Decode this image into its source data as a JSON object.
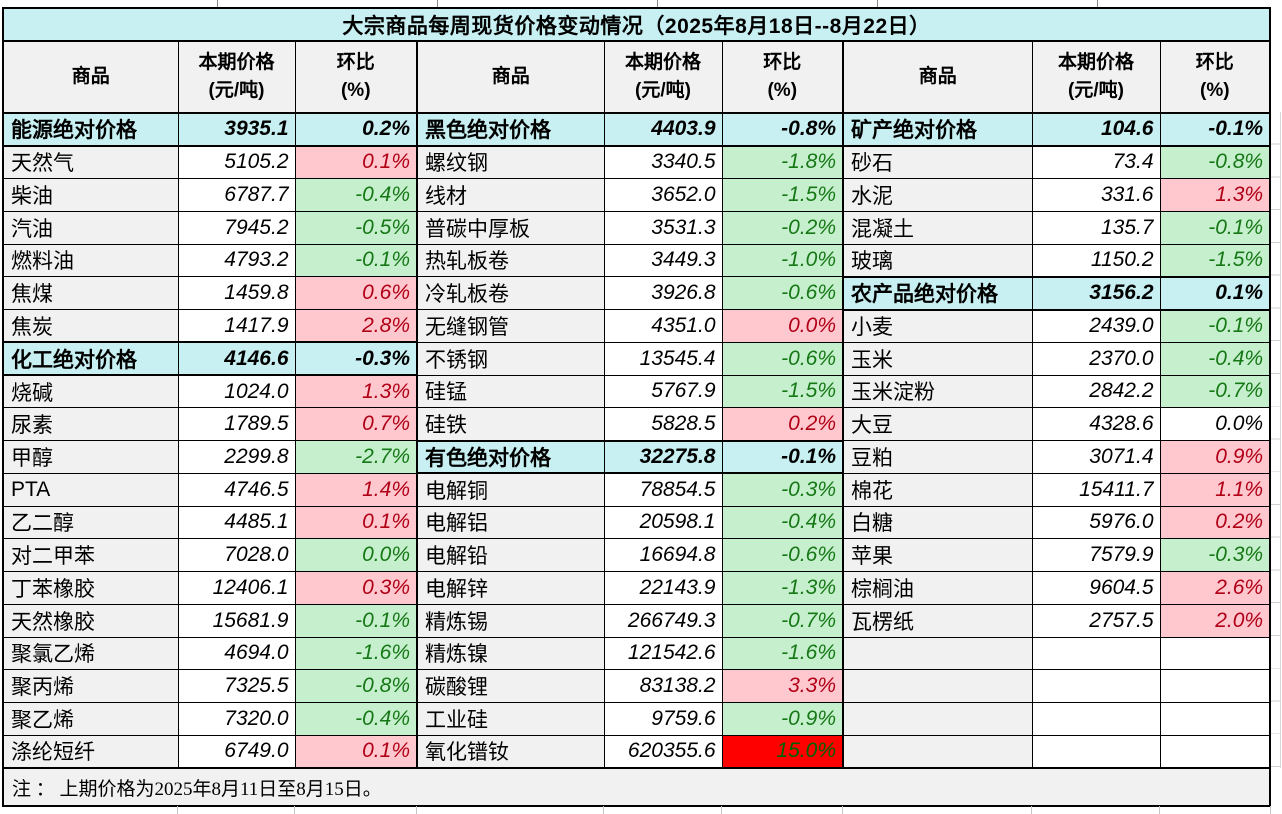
{
  "title": "大宗商品每周现货价格变动情况（2025年8月18日--8月22日）",
  "note": "注 ： 上期价格为2025年8月11日至8月15日。",
  "header": {
    "commodity": "商品",
    "price": "本期价格\n(元/吨)",
    "pct": "环比\n(%)"
  },
  "colors": {
    "title_bg": "#C8F0F2",
    "category_bg": "#C8F0F2",
    "header_bg": "#F1F1F1",
    "name_bg": "#F1F1F1",
    "up_bg": "#FFC7CE",
    "up_text": "#B00016",
    "down_bg": "#C6EFCE",
    "down_text": "#157815",
    "spike_bg": "#FF0000",
    "spike_text": "#006100",
    "border": "#000000"
  },
  "groups": [
    {
      "rows": [
        {
          "name": "能源绝对价格",
          "price": "3935.1",
          "pct": "0.2%",
          "trend": "cat"
        },
        {
          "name": "天然气",
          "price": "5105.2",
          "pct": "0.1%",
          "trend": "up"
        },
        {
          "name": "柴油",
          "price": "6787.7",
          "pct": "-0.4%",
          "trend": "down"
        },
        {
          "name": "汽油",
          "price": "7945.2",
          "pct": "-0.5%",
          "trend": "down"
        },
        {
          "name": "燃料油",
          "price": "4793.2",
          "pct": "-0.1%",
          "trend": "down"
        },
        {
          "name": "焦煤",
          "price": "1459.8",
          "pct": "0.6%",
          "trend": "up"
        },
        {
          "name": "焦炭",
          "price": "1417.9",
          "pct": "2.8%",
          "trend": "up"
        },
        {
          "name": "化工绝对价格",
          "price": "4146.6",
          "pct": "-0.3%",
          "trend": "cat"
        },
        {
          "name": "烧碱",
          "price": "1024.0",
          "pct": "1.3%",
          "trend": "up"
        },
        {
          "name": "尿素",
          "price": "1789.5",
          "pct": "0.7%",
          "trend": "up"
        },
        {
          "name": "甲醇",
          "price": "2299.8",
          "pct": "-2.7%",
          "trend": "down"
        },
        {
          "name": "PTA",
          "price": "4746.5",
          "pct": "1.4%",
          "trend": "up"
        },
        {
          "name": "乙二醇",
          "price": "4485.1",
          "pct": "0.1%",
          "trend": "up"
        },
        {
          "name": "对二甲苯",
          "price": "7028.0",
          "pct": "0.0%",
          "trend": "down"
        },
        {
          "name": "丁苯橡胶",
          "price": "12406.1",
          "pct": "0.3%",
          "trend": "up"
        },
        {
          "name": "天然橡胶",
          "price": "15681.9",
          "pct": "-0.1%",
          "trend": "down"
        },
        {
          "name": "聚氯乙烯",
          "price": "4694.0",
          "pct": "-1.6%",
          "trend": "down"
        },
        {
          "name": "聚丙烯",
          "price": "7325.5",
          "pct": "-0.8%",
          "trend": "down"
        },
        {
          "name": "聚乙烯",
          "price": "7320.0",
          "pct": "-0.4%",
          "trend": "down"
        },
        {
          "name": "涤纶短纤",
          "price": "6749.0",
          "pct": "0.1%",
          "trend": "up"
        }
      ]
    },
    {
      "rows": [
        {
          "name": "黑色绝对价格",
          "price": "4403.9",
          "pct": "-0.8%",
          "trend": "cat"
        },
        {
          "name": "螺纹钢",
          "price": "3340.5",
          "pct": "-1.8%",
          "trend": "down"
        },
        {
          "name": "线材",
          "price": "3652.0",
          "pct": "-1.5%",
          "trend": "down"
        },
        {
          "name": "普碳中厚板",
          "price": "3531.3",
          "pct": "-0.2%",
          "trend": "down"
        },
        {
          "name": "热轧板卷",
          "price": "3449.3",
          "pct": "-1.0%",
          "trend": "down"
        },
        {
          "name": "冷轧板卷",
          "price": "3926.8",
          "pct": "-0.6%",
          "trend": "down"
        },
        {
          "name": "无缝钢管",
          "price": "4351.0",
          "pct": "0.0%",
          "trend": "up"
        },
        {
          "name": "不锈钢",
          "price": "13545.4",
          "pct": "-0.6%",
          "trend": "down"
        },
        {
          "name": "硅锰",
          "price": "5767.9",
          "pct": "-1.5%",
          "trend": "down"
        },
        {
          "name": "硅铁",
          "price": "5828.5",
          "pct": "0.2%",
          "trend": "up"
        },
        {
          "name": "有色绝对价格",
          "price": "32275.8",
          "pct": "-0.1%",
          "trend": "cat"
        },
        {
          "name": "电解铜",
          "price": "78854.5",
          "pct": "-0.3%",
          "trend": "down"
        },
        {
          "name": "电解铝",
          "price": "20598.1",
          "pct": "-0.4%",
          "trend": "down"
        },
        {
          "name": "电解铅",
          "price": "16694.8",
          "pct": "-0.6%",
          "trend": "down"
        },
        {
          "name": "电解锌",
          "price": "22143.9",
          "pct": "-1.3%",
          "trend": "down"
        },
        {
          "name": "精炼锡",
          "price": "266749.3",
          "pct": "-0.7%",
          "trend": "down"
        },
        {
          "name": "精炼镍",
          "price": "121542.6",
          "pct": "-1.6%",
          "trend": "down"
        },
        {
          "name": "碳酸锂",
          "price": "83138.2",
          "pct": "3.3%",
          "trend": "up"
        },
        {
          "name": "工业硅",
          "price": "9759.6",
          "pct": "-0.9%",
          "trend": "down"
        },
        {
          "name": "氧化镨钕",
          "price": "620355.6",
          "pct": "15.0%",
          "trend": "spike"
        }
      ]
    },
    {
      "rows": [
        {
          "name": "矿产绝对价格",
          "price": "104.6",
          "pct": "-0.1%",
          "trend": "cat"
        },
        {
          "name": "砂石",
          "price": "73.4",
          "pct": "-0.8%",
          "trend": "down"
        },
        {
          "name": "水泥",
          "price": "331.6",
          "pct": "1.3%",
          "trend": "up"
        },
        {
          "name": "混凝土",
          "price": "135.7",
          "pct": "-0.1%",
          "trend": "down"
        },
        {
          "name": "玻璃",
          "price": "1150.2",
          "pct": "-1.5%",
          "trend": "down"
        },
        {
          "name": "农产品绝对价格",
          "price": "3156.2",
          "pct": "0.1%",
          "trend": "cat"
        },
        {
          "name": "小麦",
          "price": "2439.0",
          "pct": "-0.1%",
          "trend": "down"
        },
        {
          "name": "玉米",
          "price": "2370.0",
          "pct": "-0.4%",
          "trend": "down"
        },
        {
          "name": "玉米淀粉",
          "price": "2842.2",
          "pct": "-0.7%",
          "trend": "down"
        },
        {
          "name": "大豆",
          "price": "4328.6",
          "pct": "0.0%",
          "trend": "flat"
        },
        {
          "name": "豆粕",
          "price": "3071.4",
          "pct": "0.9%",
          "trend": "up"
        },
        {
          "name": "棉花",
          "price": "15411.7",
          "pct": "1.1%",
          "trend": "up"
        },
        {
          "name": "白糖",
          "price": "5976.0",
          "pct": "0.2%",
          "trend": "up"
        },
        {
          "name": "苹果",
          "price": "7579.9",
          "pct": "-0.3%",
          "trend": "down"
        },
        {
          "name": "棕榈油",
          "price": "9604.5",
          "pct": "2.6%",
          "trend": "up"
        },
        {
          "name": "瓦楞纸",
          "price": "2757.5",
          "pct": "2.0%",
          "trend": "up"
        },
        {
          "name": "",
          "price": "",
          "pct": "",
          "trend": "empty"
        },
        {
          "name": "",
          "price": "",
          "pct": "",
          "trend": "empty"
        },
        {
          "name": "",
          "price": "",
          "pct": "",
          "trend": "empty"
        },
        {
          "name": "",
          "price": "",
          "pct": "",
          "trend": "empty"
        }
      ]
    }
  ]
}
